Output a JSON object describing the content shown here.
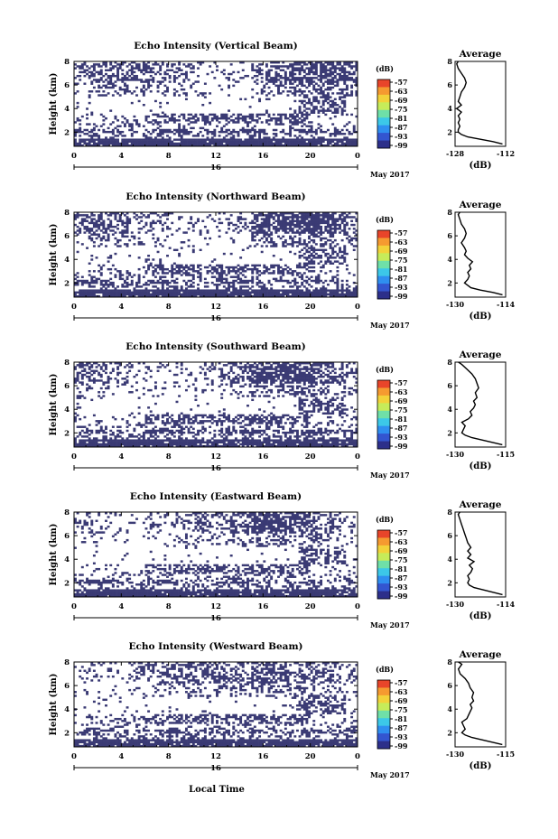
{
  "figure": {
    "xlabel": "Local Time",
    "date_label": "May 2017",
    "day_label": "16"
  },
  "colors": {
    "low": "#3a3a74",
    "scale": [
      "#2c2f8a",
      "#3355d0",
      "#2f8ff0",
      "#3cc8e8",
      "#6fe0a8",
      "#c6ec5a",
      "#f2d23a",
      "#f59a30",
      "#e8452a"
    ],
    "line": "#000000"
  },
  "chart_data": [
    {
      "type": "heatmap",
      "title": "Echo Intensity (Vertical Beam)",
      "ylabel": "Height (km)",
      "xlabel": "Local Time",
      "x_ticks": [
        "0",
        "4",
        "8",
        "12",
        "16",
        "20",
        "0"
      ],
      "xlim": [
        0,
        24
      ],
      "y_ticks": [
        "2",
        "4",
        "6",
        "8"
      ],
      "ylim": [
        0.8,
        8
      ],
      "colorbar_unit": "(dB)",
      "colorbar_ticks": [
        "-57",
        "-63",
        "-69",
        "-75",
        "-81",
        "-87",
        "-93",
        "-99"
      ],
      "profile": {
        "title": "Average",
        "xlabel": "(dB)",
        "x_ticks": [
          "-128",
          "-112"
        ],
        "xlim": [
          -128,
          -112
        ],
        "height": [
          1.0,
          1.2,
          1.4,
          1.6,
          1.8,
          2.0,
          2.2,
          2.5,
          2.8,
          3.1,
          3.4,
          3.7,
          4.0,
          4.3,
          4.6,
          5.0,
          5.4,
          5.8,
          6.2,
          6.6,
          7.0,
          7.4,
          7.8,
          8.0
        ],
        "value": [
          -113,
          -116,
          -120,
          -124,
          -126,
          -127,
          -127,
          -126.5,
          -127,
          -126.5,
          -127,
          -126,
          -127.5,
          -126,
          -127,
          -126.5,
          -126,
          -125,
          -124.5,
          -125,
          -126,
          -127,
          -127.5,
          -127
        ]
      }
    },
    {
      "type": "heatmap",
      "title": "Echo Intensity (Northward Beam)",
      "ylabel": "Height (km)",
      "xlabel": "Local Time",
      "x_ticks": [
        "0",
        "4",
        "8",
        "12",
        "16",
        "20",
        "0"
      ],
      "xlim": [
        0,
        24
      ],
      "y_ticks": [
        "2",
        "4",
        "6",
        "8"
      ],
      "ylim": [
        0.8,
        8
      ],
      "colorbar_unit": "(dB)",
      "colorbar_ticks": [
        "-57",
        "-63",
        "-69",
        "-75",
        "-81",
        "-87",
        "-93",
        "-99"
      ],
      "profile": {
        "title": "Average",
        "xlabel": "(dB)",
        "x_ticks": [
          "-130",
          "-114"
        ],
        "xlim": [
          -130,
          -114
        ],
        "height": [
          1.0,
          1.2,
          1.4,
          1.6,
          1.8,
          2.0,
          2.3,
          2.6,
          2.9,
          3.2,
          3.5,
          3.8,
          4.1,
          4.4,
          4.7,
          5.0,
          5.4,
          5.8,
          6.2,
          6.6,
          7.0,
          7.4,
          7.8,
          8.0
        ],
        "value": [
          -115,
          -118,
          -122,
          -125,
          -126,
          -127,
          -126,
          -125.5,
          -126,
          -125,
          -125.5,
          -124.5,
          -126,
          -127,
          -126.5,
          -127,
          -128,
          -127,
          -126.5,
          -127,
          -128,
          -128.5,
          -129,
          -128.5
        ]
      }
    },
    {
      "type": "heatmap",
      "title": "Echo Intensity (Southward Beam)",
      "ylabel": "Height (km)",
      "xlabel": "Local Time",
      "x_ticks": [
        "0",
        "4",
        "8",
        "12",
        "16",
        "20",
        "0"
      ],
      "xlim": [
        0,
        24
      ],
      "y_ticks": [
        "2",
        "4",
        "6",
        "8"
      ],
      "ylim": [
        0.8,
        8
      ],
      "colorbar_unit": "(dB)",
      "colorbar_ticks": [
        "-57",
        "-63",
        "-69",
        "-75",
        "-81",
        "-87",
        "-93",
        "-99"
      ],
      "profile": {
        "title": "Average",
        "xlabel": "(dB)",
        "x_ticks": [
          "-130",
          "-115"
        ],
        "xlim": [
          -130,
          -115
        ],
        "height": [
          1.0,
          1.2,
          1.4,
          1.6,
          1.8,
          2.0,
          2.3,
          2.6,
          2.9,
          3.2,
          3.5,
          3.8,
          4.1,
          4.4,
          4.7,
          5.0,
          5.4,
          5.8,
          6.2,
          6.6,
          7.0,
          7.4,
          7.8,
          8.0
        ],
        "value": [
          -116,
          -119,
          -122,
          -125,
          -127,
          -128,
          -127.5,
          -127,
          -128,
          -126,
          -125,
          -125.5,
          -124.5,
          -124,
          -124.5,
          -123.5,
          -124,
          -123,
          -123.5,
          -124,
          -125,
          -126.5,
          -128,
          -129
        ]
      }
    },
    {
      "type": "heatmap",
      "title": "Echo Intensity (Eastward Beam)",
      "ylabel": "Height (km)",
      "xlabel": "Local Time",
      "x_ticks": [
        "0",
        "4",
        "8",
        "12",
        "16",
        "20",
        "0"
      ],
      "xlim": [
        0,
        24
      ],
      "y_ticks": [
        "2",
        "4",
        "6",
        "8"
      ],
      "ylim": [
        0.8,
        8
      ],
      "colorbar_unit": "(dB)",
      "colorbar_ticks": [
        "-57",
        "-63",
        "-69",
        "-75",
        "-81",
        "-87",
        "-93",
        "-99"
      ],
      "profile": {
        "title": "Average",
        "xlabel": "(dB)",
        "x_ticks": [
          "-130",
          "-114"
        ],
        "xlim": [
          -130,
          -114
        ],
        "height": [
          1.0,
          1.2,
          1.4,
          1.6,
          1.8,
          2.0,
          2.3,
          2.6,
          2.9,
          3.2,
          3.5,
          3.8,
          4.1,
          4.4,
          4.7,
          5.0,
          5.4,
          5.8,
          6.2,
          6.6,
          7.0,
          7.4,
          7.8,
          8.0
        ],
        "value": [
          -115,
          -118,
          -121,
          -124,
          -125.5,
          -126,
          -125.5,
          -126,
          -125,
          -124.5,
          -125.5,
          -124,
          -126,
          -125,
          -126,
          -125,
          -126,
          -126.5,
          -127,
          -127.5,
          -128,
          -128.5,
          -129,
          -128.5
        ]
      }
    },
    {
      "type": "heatmap",
      "title": "Echo Intensity (Westward Beam)",
      "ylabel": "Height (km)",
      "xlabel": "Local Time",
      "x_ticks": [
        "0",
        "4",
        "8",
        "12",
        "16",
        "20",
        "0"
      ],
      "xlim": [
        0,
        24
      ],
      "y_ticks": [
        "2",
        "4",
        "6",
        "8"
      ],
      "ylim": [
        0.8,
        8
      ],
      "colorbar_unit": "(dB)",
      "colorbar_ticks": [
        "-57",
        "-63",
        "-69",
        "-75",
        "-81",
        "-87",
        "-93",
        "-99"
      ],
      "profile": {
        "title": "Average",
        "xlabel": "(dB)",
        "x_ticks": [
          "-130",
          "-115"
        ],
        "xlim": [
          -130,
          -115
        ],
        "height": [
          1.0,
          1.2,
          1.4,
          1.6,
          1.8,
          2.0,
          2.3,
          2.6,
          2.9,
          3.2,
          3.5,
          3.8,
          4.1,
          4.4,
          4.7,
          5.0,
          5.4,
          5.8,
          6.2,
          6.6,
          7.0,
          7.4,
          7.8,
          8.0
        ],
        "value": [
          -116,
          -119,
          -122,
          -125,
          -127,
          -128,
          -127,
          -127.5,
          -128,
          -126.5,
          -126,
          -125.5,
          -125,
          -125.5,
          -124.5,
          -125,
          -124.5,
          -125.5,
          -126,
          -127,
          -128.5,
          -129,
          -128,
          -129
        ]
      }
    }
  ]
}
